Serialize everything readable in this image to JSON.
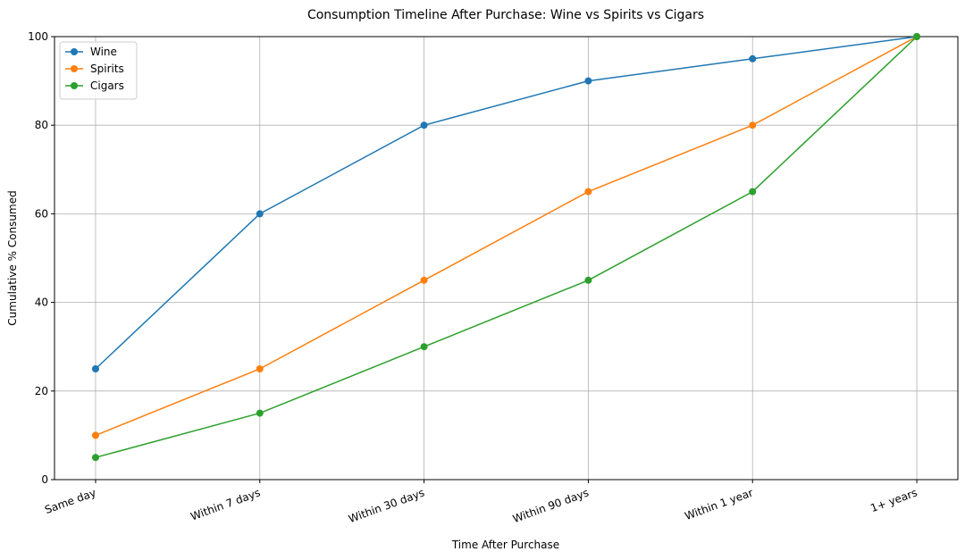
{
  "chart_data": {
    "type": "line",
    "title": "Consumption Timeline After Purchase: Wine vs Spirits vs Cigars",
    "x_label": "Time After Purchase",
    "y_label": "Cumulative % Consumed",
    "categories": [
      "Same day",
      "Within 7 days",
      "Within 30 days",
      "Within 90 days",
      "Within 1 year",
      "1+ years"
    ],
    "series": [
      {
        "name": "Wine",
        "color": "#1f77b4",
        "values": [
          25,
          60,
          80,
          90,
          95,
          100
        ]
      },
      {
        "name": "Spirits",
        "color": "#ff7f0e",
        "values": [
          10,
          25,
          45,
          65,
          80,
          100
        ]
      },
      {
        "name": "Cigars",
        "color": "#2ca02c",
        "values": [
          5,
          15,
          30,
          45,
          65,
          100
        ]
      }
    ],
    "ylim": [
      0,
      100
    ],
    "yticks": [
      0,
      20,
      40,
      60,
      80,
      100
    ],
    "grid": true,
    "legend": "upper-left"
  }
}
